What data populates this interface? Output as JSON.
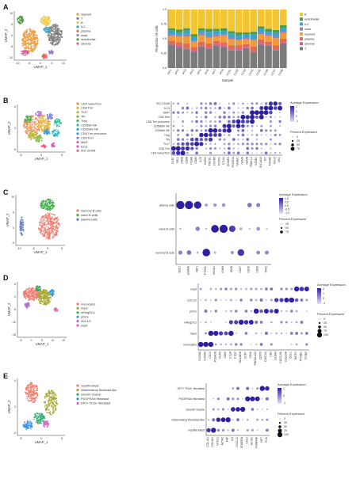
{
  "colors": {
    "myeloid": "#f09a3a",
    "T": "#7b7b7b",
    "B": "#f3c531",
    "ILC": "#3aa5c8",
    "plasma": "#e06b4f",
    "mast": "#9b7cc1",
    "endothelial": "#4b9a47",
    "stromal": "#d65c98",
    "dot_low": "#e6e1f2",
    "dot_high": "#2d1fa0"
  },
  "panels": [
    {
      "letter": "A",
      "umap": {
        "xlabel": "UMAP_1",
        "ylabel": "UMAP_2",
        "xticks": [
          "-10",
          "-5",
          "0",
          "5",
          "10"
        ],
        "yticks": [
          "10",
          "5",
          "0",
          "-5",
          "-10"
        ],
        "legend": [
          "myeloid",
          "T",
          "B",
          "ILC",
          "plasma",
          "mast",
          "endothelial",
          "stromal"
        ]
      },
      "stacked": {
        "ylabel": "Proportion of cells",
        "xlabel": "Sample",
        "yticks": [
          "1,0",
          "0,75",
          "0,5",
          "0,25",
          "0,0"
        ],
        "samples": [
          "IPF1",
          "IPF2",
          "IPF3",
          "IPF4",
          "IPF5",
          "IPF6",
          "IPF7",
          "IPF8",
          "CC01",
          "CC02",
          "CC03",
          "CC04",
          "CC05",
          "CC06",
          "CC07",
          "CC08"
        ],
        "legend": [
          "B",
          "endothelial",
          "ILC",
          "mast",
          "myeloid",
          "plasma",
          "stromal",
          "T"
        ]
      }
    },
    {
      "letter": "B",
      "umap": {
        "xlabel": "UMAP_1",
        "ylabel": "UMAP_2",
        "xticks": [
          "-5",
          "0",
          "5"
        ],
        "yticks": [
          "5",
          "0",
          "-5"
        ],
        "legend": [
          "CD4 naive/Tcm",
          "CD8 Trm",
          "Th17",
          "Tfh",
          "Treg",
          "CD56bri NK",
          "CD56dim NK",
          "CD8 Trm precursor",
          "CD8 Tem",
          "MAIT",
          "ILC3",
          "ISG CD4/8"
        ]
      },
      "dot": {
        "rows": [
          "ISG CD4/8",
          "ILC3",
          "MAIT",
          "CD8 Tem",
          "CD8 Trm precursor",
          "CD56dim NK",
          "CD56bri NK",
          "Treg",
          "Tfh",
          "Th17",
          "CD8 Trm",
          "CD4 naive/Tcm"
        ],
        "cols": [
          "CCR7",
          "SELL",
          "CD8A",
          "CD8B",
          "ITGAE",
          "CD69",
          "IL7R",
          "RORC",
          "PDCD1",
          "CXCR5",
          "FOXP3",
          "CTLA4",
          "EOMES",
          "FCGR3A",
          "NCAM1",
          "GZMK",
          "GZMB",
          "TRAV1-2",
          "KLRB1",
          "SLC4A10",
          "KIT",
          "PCDH9",
          "ISG15",
          "MX1"
        ],
        "expr_title": "Average Expression",
        "expr_ticks": [
          "2",
          "1",
          "0",
          "-1"
        ],
        "pct_title": "Percent Expressed",
        "pct_ticks": [
          "0",
          "25",
          "50",
          "75"
        ]
      }
    },
    {
      "letter": "C",
      "umap": {
        "xlabel": "UMAP_1",
        "ylabel": "UMAP_2",
        "xticks": [
          "-10",
          "-5",
          "0",
          "5"
        ],
        "yticks": [
          "10",
          "5",
          "0",
          "-5"
        ],
        "legend": [
          "memory B cells",
          "naive B cells",
          "plasma cells"
        ]
      },
      "dot": {
        "rows": [
          "plasma cells",
          "naive B cells",
          "memory B cells"
        ],
        "cols": [
          "SDC1",
          "JCHAIN",
          "XBP1",
          "PTPRC",
          "MS4A1",
          "IGHM",
          "IGHD",
          "CD27",
          "CD38",
          "CD86",
          "TFRC"
        ],
        "expr_title": "Average Expression",
        "expr_ticks": [
          "1,0",
          "0,5",
          "0,0",
          "-0,5",
          "-1,0"
        ],
        "pct_title": "Percent Expressed",
        "pct_ticks": [
          "25",
          "50",
          "75"
        ]
      }
    },
    {
      "letter": "D",
      "umap": {
        "xlabel": "UMAP_1",
        "ylabel": "UMAP_2",
        "xticks": [
          "-5",
          "0",
          "5",
          "10",
          "15"
        ],
        "yticks": [
          "5",
          "0",
          "-5",
          "-10",
          "-15"
        ],
        "legend": [
          "monocytes",
          "macs",
          "mRegDCs",
          "pDCs",
          "cDC1/2",
          "mast"
        ]
      },
      "dot": {
        "rows": [
          "mast",
          "cDC1/2",
          "pDCs",
          "mRegDCs",
          "macs",
          "monocytes"
        ],
        "cols": [
          "S100A8",
          "S100A9",
          "CD14",
          "FCGR3A",
          "VCAN",
          "CD68",
          "C1QA",
          "C1QC",
          "HLA-DRA",
          "CCR7",
          "CD40",
          "PDCD1LG2",
          "CD200",
          "CLEC4C",
          "CD4",
          "LILRA4",
          "CLEC10A",
          "CLEC9A",
          "CD1C",
          "BATF3",
          "TPSAB1",
          "TPSB2"
        ],
        "expr_title": "Average Expression",
        "expr_ticks": [
          "2",
          "1",
          "0",
          "-1"
        ],
        "pct_title": "Percent Expressed",
        "pct_ticks": [
          "0",
          "25",
          "50",
          "75",
          "100"
        ]
      }
    },
    {
      "letter": "E",
      "umap": {
        "xlabel": "UMAP_1",
        "ylabel": "UMAP_2",
        "xticks": [
          "-5",
          "0",
          "5"
        ],
        "yticks": [
          "4",
          "0",
          "-4"
        ],
        "legend": [
          "myofibroblast",
          "inflammatory fibroblast-like",
          "smooth muscle",
          "PDGFRAhi fibroblast",
          "DPT+ PI16+ fibroblast"
        ]
      },
      "dot": {
        "rows": [
          "DPT+ PI16+ fibroblast",
          "PDGFRAhi fibroblast",
          "smooth muscle",
          "inflammatory fibroblast-like",
          "myofibroblast"
        ],
        "cols": [
          "COL1A1",
          "COL3A1",
          "MYH11",
          "ACTA2",
          "FAP",
          "IL6",
          "CXCL12",
          "PDGFRA",
          "CCL2",
          "ACTA2",
          "PDGFRB",
          "DPT",
          "PI16"
        ],
        "expr_title": "Average Expression",
        "expr_ticks": [
          "1",
          "0",
          "-1"
        ],
        "pct_title": "Percent Expressed",
        "pct_ticks": [
          "0",
          "25",
          "50",
          "75",
          "100"
        ]
      }
    }
  ],
  "chart_data": [
    {
      "type": "bar",
      "stacked": true,
      "ylabel": "Proportion of cells",
      "xlabel": "Sample",
      "ylim": [
        0,
        1
      ],
      "categories": [
        "IPF1",
        "IPF2",
        "IPF3",
        "IPF4",
        "IPF5",
        "IPF6",
        "IPF7",
        "IPF8",
        "CC01",
        "CC02",
        "CC03",
        "CC04",
        "CC05",
        "CC06",
        "CC07",
        "CC08"
      ],
      "series": [
        {
          "name": "T",
          "values": [
            0.4,
            0.35,
            0.32,
            0.28,
            0.37,
            0.33,
            0.38,
            0.36,
            0.3,
            0.3,
            0.34,
            0.27,
            0.4,
            0.38,
            0.3,
            0.42
          ]
        },
        {
          "name": "stromal",
          "values": [
            0.02,
            0.03,
            0.02,
            0.03,
            0.02,
            0.02,
            0.03,
            0.02,
            0.02,
            0.03,
            0.02,
            0.02,
            0.03,
            0.02,
            0.02,
            0.02
          ]
        },
        {
          "name": "plasma",
          "values": [
            0.05,
            0.06,
            0.08,
            0.05,
            0.06,
            0.07,
            0.05,
            0.06,
            0.07,
            0.06,
            0.05,
            0.08,
            0.06,
            0.05,
            0.07,
            0.06
          ]
        },
        {
          "name": "myeloid",
          "values": [
            0.08,
            0.1,
            0.12,
            0.09,
            0.11,
            0.1,
            0.08,
            0.12,
            0.1,
            0.09,
            0.08,
            0.11,
            0.09,
            0.1,
            0.12,
            0.1
          ]
        },
        {
          "name": "mast",
          "values": [
            0.03,
            0.02,
            0.03,
            0.02,
            0.03,
            0.02,
            0.03,
            0.02,
            0.03,
            0.02,
            0.03,
            0.02,
            0.03,
            0.02,
            0.03,
            0.02
          ]
        },
        {
          "name": "ILC",
          "values": [
            0.06,
            0.05,
            0.07,
            0.06,
            0.05,
            0.08,
            0.06,
            0.05,
            0.07,
            0.06,
            0.05,
            0.07,
            0.06,
            0.05,
            0.07,
            0.06
          ]
        },
        {
          "name": "endothelial",
          "values": [
            0.04,
            0.05,
            0.04,
            0.05,
            0.04,
            0.05,
            0.04,
            0.05,
            0.04,
            0.05,
            0.04,
            0.05,
            0.04,
            0.05,
            0.04,
            0.05
          ]
        },
        {
          "name": "B",
          "values": [
            0.32,
            0.34,
            0.32,
            0.42,
            0.32,
            0.33,
            0.33,
            0.32,
            0.37,
            0.39,
            0.39,
            0.38,
            0.29,
            0.33,
            0.35,
            0.27
          ]
        }
      ]
    }
  ]
}
